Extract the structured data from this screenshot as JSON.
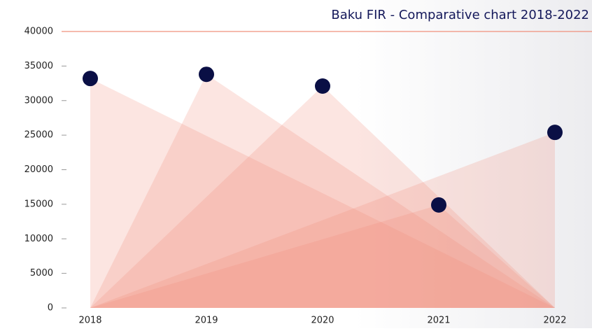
{
  "chart_data": {
    "type": "triangle",
    "title": "Baku FIR - Comparative chart 2018-2022",
    "categories": [
      "2018",
      "2019",
      "2020",
      "2021",
      "2022"
    ],
    "values": [
      33200,
      33800,
      32100,
      14900,
      25400
    ],
    "color": "#f08a78",
    "marker_color": "#0a0f45",
    "top_line_color": "#f0907c",
    "ylim": [
      0,
      40000
    ],
    "yticks": [
      0,
      5000,
      10000,
      15000,
      20000,
      25000,
      30000,
      35000,
      40000
    ]
  }
}
